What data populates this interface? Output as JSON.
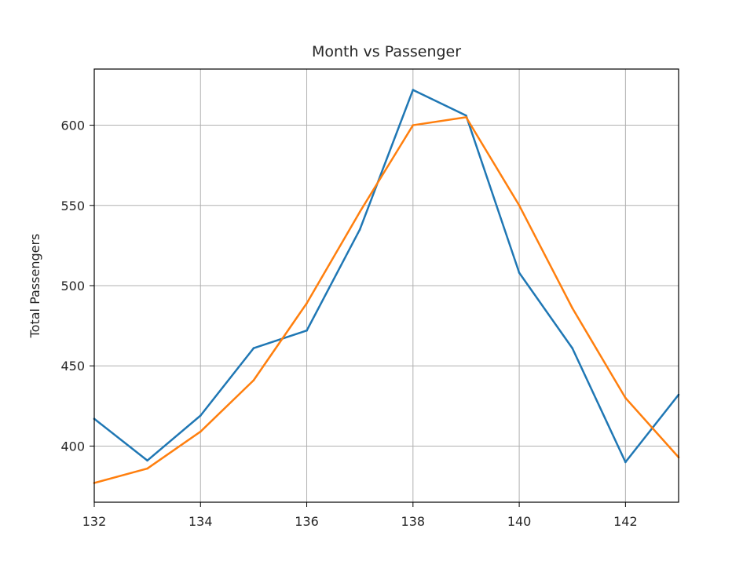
{
  "chart_data": {
    "type": "line",
    "title": "Month vs Passenger",
    "xlabel": "",
    "ylabel": "Total Passengers",
    "xlim": [
      132,
      143
    ],
    "ylim": [
      365,
      635
    ],
    "x_ticks": [
      132,
      134,
      136,
      138,
      140,
      142
    ],
    "y_ticks": [
      400,
      450,
      500,
      550,
      600
    ],
    "grid": true,
    "x": [
      132,
      133,
      134,
      135,
      136,
      137,
      138,
      139,
      140,
      141,
      142,
      143
    ],
    "series": [
      {
        "color": "#1f77b4",
        "values": [
          417,
          391,
          419,
          461,
          472,
          535,
          622,
          606,
          508,
          461,
          390,
          432
        ]
      },
      {
        "color": "#ff7f0e",
        "values": [
          377,
          386,
          409,
          441,
          489,
          546,
          600,
          605,
          550,
          486,
          430,
          393
        ]
      }
    ]
  }
}
